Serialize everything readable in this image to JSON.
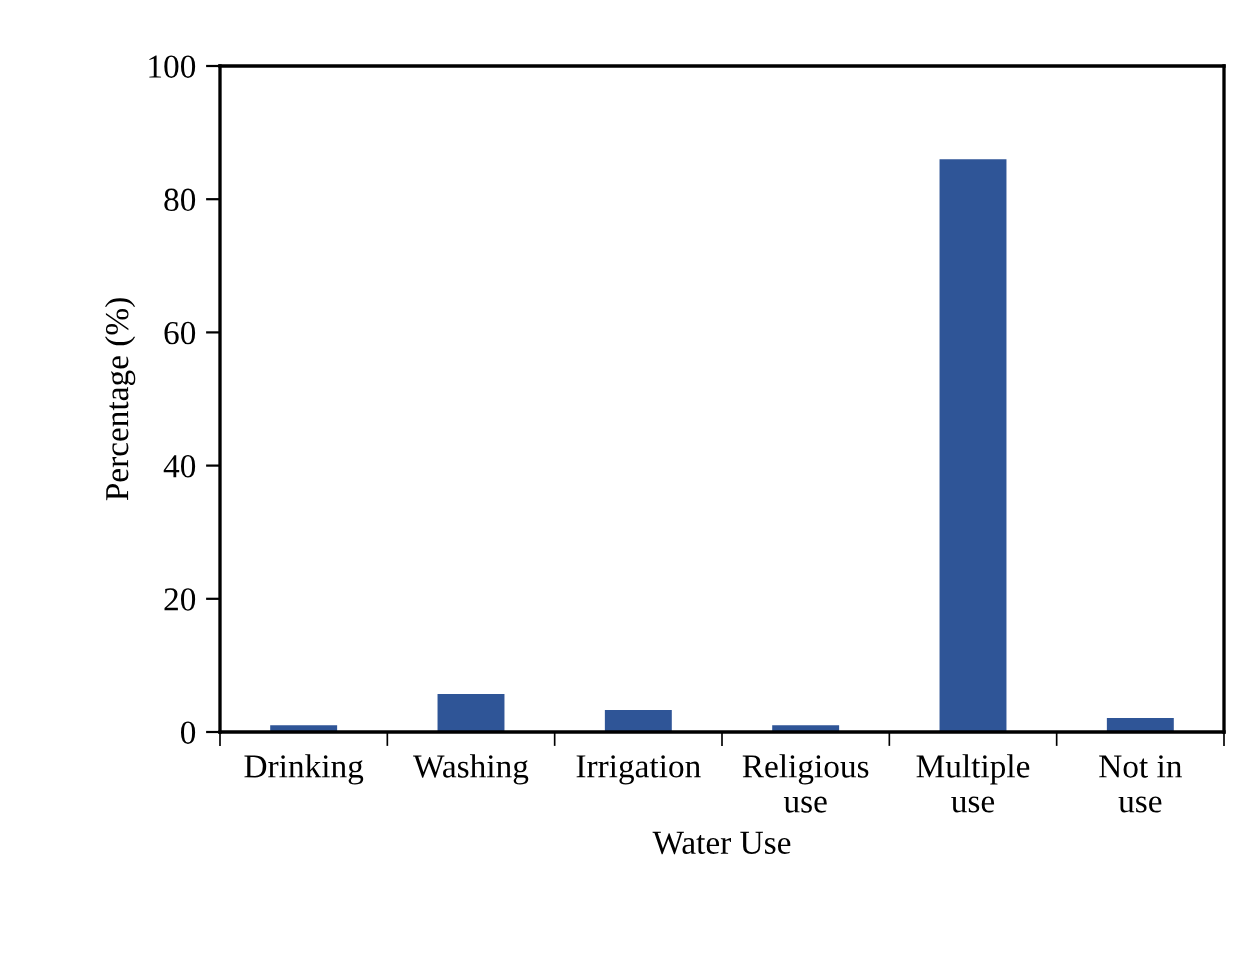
{
  "chart_data": {
    "type": "bar",
    "xlabel": "Water Use",
    "ylabel": "Percentage (%)",
    "categories": [
      "Drinking",
      "Washing",
      "Irrigation",
      "Religious\nuse",
      "Multiple\nuse",
      "Not in\nuse"
    ],
    "values": [
      1.0,
      5.7,
      3.3,
      1.0,
      86,
      2.1
    ],
    "color": "#2f5597",
    "ylim": [
      0,
      100
    ],
    "yticks": [
      0,
      20,
      40,
      60,
      80,
      100
    ],
    "grid": false,
    "legend": false
  }
}
